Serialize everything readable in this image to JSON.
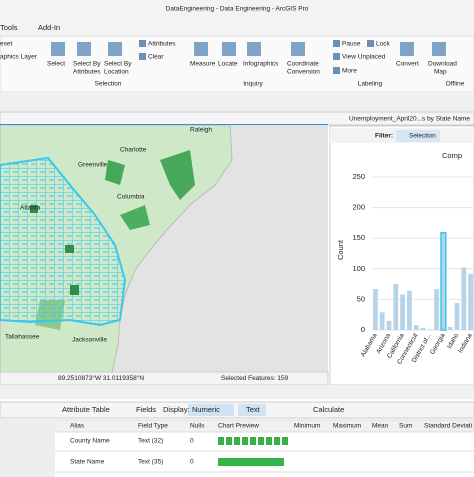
{
  "window": {
    "title": "DataEngineering - Data Engineering - ArcGIS Pro"
  },
  "tabs": [
    "Tools",
    "Add-In"
  ],
  "ribbon": {
    "items": [
      "eset",
      "aphics Layer",
      "Select",
      "Select By",
      "Attributes",
      "Select By",
      "Location",
      "Attributes",
      "Clear",
      "Measure",
      "Locate",
      "Infographics",
      "Coordinate",
      "Conversion",
      "Pause",
      "Lock",
      "View Unplaced",
      "More",
      "Convert",
      "Download",
      "Map"
    ],
    "groups": [
      "Selection",
      "Inquiry",
      "Labeling",
      "Offline"
    ]
  },
  "map": {
    "labels": [
      "Raleigh",
      "Charlotte",
      "Greenville",
      "Columbia",
      "Atlanta",
      "Tallahassee",
      "Jacksonville"
    ],
    "coordinates": "89.2510873°W 31.0119358°N",
    "selected": "Selected Features: 159"
  },
  "chart_panel": {
    "tab": "Unemployment_April20...s by State Name",
    "filter": "Filter:",
    "selection": "Selection"
  },
  "chart": {
    "type": "bar",
    "title": "Comp",
    "ylabel": "Count",
    "categories": [
      "Alabama",
      null,
      "Arizona",
      null,
      "California",
      null,
      "Connecticut",
      null,
      "District of...",
      null,
      "Georgia",
      null,
      "Idaho",
      null,
      "Indiana"
    ],
    "values": [
      67,
      29,
      15,
      75,
      58,
      64,
      8,
      3,
      1,
      67,
      159,
      5,
      44,
      102,
      92
    ],
    "highlight": "Georgia",
    "color": "#b7d3e8",
    "highlight_color": "#3ac6f0",
    "ylim": [
      0,
      250
    ],
    "yticks": [
      0,
      50,
      100,
      150,
      200,
      250
    ],
    "grid": true
  },
  "table_toolbar": [
    "Attribute Table",
    "Fields",
    "Display:",
    "Numeric",
    "Text",
    "Calculate"
  ],
  "table": {
    "columns": [
      "Alias",
      "Field Type",
      "Nulls",
      "Chart Preview",
      "Minimum",
      "Maximum",
      "Mean",
      "Sum",
      "Standard Deviati"
    ],
    "rows": [
      [
        "County Name",
        "Text (32)",
        0
      ],
      [
        "State Name",
        "Text (35)",
        0
      ]
    ]
  }
}
